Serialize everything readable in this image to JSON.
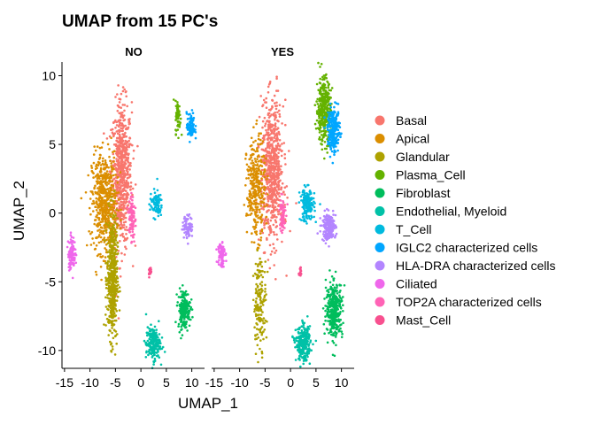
{
  "chart_data": {
    "type": "scatter",
    "title": "UMAP from 15 PC's",
    "xlabel": "UMAP_1",
    "ylabel": "UMAP_2",
    "xlim": [
      -15.5,
      12.5
    ],
    "ylim": [
      -11.3,
      11.0
    ],
    "x_ticks": [
      -15,
      -10,
      -5,
      0,
      5,
      10
    ],
    "y_ticks": [
      -10,
      -5,
      0,
      5,
      10
    ],
    "grid": false,
    "legend_position": "right",
    "facets": [
      "NO",
      "YES"
    ],
    "series": [
      {
        "name": "Basal",
        "color": "#F8766D",
        "clusters": {
          "NO": [
            {
              "x": -3.8,
              "y": 2.8,
              "sx": 1.0,
              "sy": 2.6,
              "n": 700
            }
          ],
          "YES": [
            {
              "x": -3.6,
              "y": 3.0,
              "sx": 1.1,
              "sy": 2.5,
              "n": 700
            }
          ]
        }
      },
      {
        "name": "Apical",
        "color": "#DB8E00",
        "clusters": {
          "NO": [
            {
              "x": -7.2,
              "y": 0.8,
              "sx": 1.2,
              "sy": 1.8,
              "n": 550
            }
          ],
          "YES": [
            {
              "x": -6.8,
              "y": 1.8,
              "sx": 0.9,
              "sy": 1.8,
              "n": 320
            }
          ]
        }
      },
      {
        "name": "Glandular",
        "color": "#AEA200",
        "clusters": {
          "NO": [
            {
              "x": -5.6,
              "y": -4.8,
              "sx": 0.5,
              "sy": 2.2,
              "n": 500
            }
          ],
          "YES": [
            {
              "x": -6.0,
              "y": -6.5,
              "sx": 0.6,
              "sy": 1.6,
              "n": 160
            }
          ]
        }
      },
      {
        "name": "Plasma_Cell",
        "color": "#64B200",
        "clusters": {
          "NO": [
            {
              "x": 7.3,
              "y": 7.0,
              "sx": 0.25,
              "sy": 0.6,
              "n": 60
            }
          ],
          "YES": [
            {
              "x": 6.5,
              "y": 7.5,
              "sx": 0.7,
              "sy": 1.2,
              "n": 350
            }
          ]
        }
      },
      {
        "name": "Fibroblast",
        "color": "#00BD5C",
        "clusters": {
          "NO": [
            {
              "x": 8.5,
              "y": -7.0,
              "sx": 0.6,
              "sy": 0.7,
              "n": 200
            }
          ],
          "YES": [
            {
              "x": 8.6,
              "y": -7.0,
              "sx": 0.8,
              "sy": 1.0,
              "n": 350
            }
          ]
        }
      },
      {
        "name": "Endothelial, Myeloid",
        "color": "#00C1A7",
        "clusters": {
          "NO": [
            {
              "x": 2.4,
              "y": -9.5,
              "sx": 0.7,
              "sy": 0.6,
              "n": 200
            }
          ],
          "YES": [
            {
              "x": 2.5,
              "y": -9.5,
              "sx": 0.7,
              "sy": 0.6,
              "n": 260
            }
          ]
        }
      },
      {
        "name": "T_Cell",
        "color": "#00BADE",
        "clusters": {
          "NO": [
            {
              "x": 3.0,
              "y": 0.7,
              "sx": 0.6,
              "sy": 0.5,
              "n": 90
            }
          ],
          "YES": [
            {
              "x": 3.3,
              "y": 0.6,
              "sx": 0.7,
              "sy": 0.6,
              "n": 180
            }
          ]
        }
      },
      {
        "name": "IGLC2 characterized cells",
        "color": "#00A6FF",
        "clusters": {
          "NO": [
            {
              "x": 9.8,
              "y": 6.3,
              "sx": 0.4,
              "sy": 0.5,
              "n": 90
            }
          ],
          "YES": [
            {
              "x": 8.5,
              "y": 6.0,
              "sx": 0.6,
              "sy": 0.8,
              "n": 220
            }
          ]
        }
      },
      {
        "name": "HLA-DRA characterized cells",
        "color": "#B385FF",
        "clusters": {
          "NO": [
            {
              "x": 9.2,
              "y": -1.0,
              "sx": 0.5,
              "sy": 0.4,
              "n": 80
            }
          ],
          "YES": [
            {
              "x": 7.5,
              "y": -1.0,
              "sx": 0.7,
              "sy": 0.5,
              "n": 180
            }
          ]
        }
      },
      {
        "name": "Ciliated",
        "color": "#EF67EB",
        "clusters": {
          "NO": [
            {
              "x": -13.6,
              "y": -2.9,
              "sx": 0.35,
              "sy": 0.6,
              "n": 100
            }
          ],
          "YES": [
            {
              "x": -13.6,
              "y": -2.9,
              "sx": 0.35,
              "sy": 0.5,
              "n": 80
            }
          ]
        }
      },
      {
        "name": "TOP2A characterized cells",
        "color": "#FF63B6",
        "clusters": {
          "NO": [
            {
              "x": -1.8,
              "y": -0.4,
              "sx": 0.3,
              "sy": 0.9,
              "n": 90
            }
          ],
          "YES": [
            {
              "x": -1.6,
              "y": -0.2,
              "sx": 0.3,
              "sy": 0.7,
              "n": 70
            }
          ]
        }
      },
      {
        "name": "Mast_Cell",
        "color": "#F8508F",
        "clusters": {
          "NO": [
            {
              "x": 1.8,
              "y": -4.2,
              "sx": 0.15,
              "sy": 0.2,
              "n": 20
            }
          ],
          "YES": [
            {
              "x": 1.9,
              "y": -4.2,
              "sx": 0.15,
              "sy": 0.2,
              "n": 15
            }
          ]
        }
      }
    ]
  }
}
